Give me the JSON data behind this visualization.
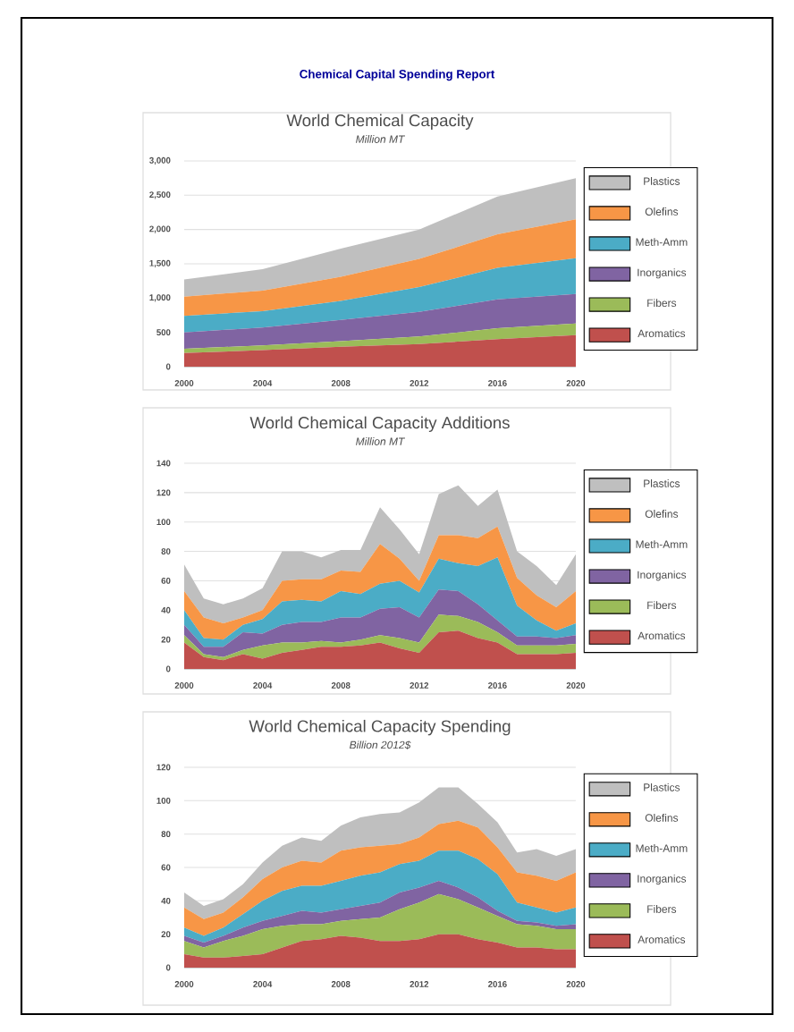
{
  "chart_data": [
    {
      "type": "area",
      "stacked": true,
      "title": "World Chemical Capacity",
      "subtitle": "Million MT",
      "annotations": [
        "Chemical Capital Spending Report"
      ],
      "x": [
        2000,
        2004,
        2008,
        2012,
        2016,
        2020
      ],
      "xlim": [
        2000,
        2020
      ],
      "xticks": [
        2000,
        2004,
        2008,
        2012,
        2016,
        2020
      ],
      "ylim": [
        0,
        3000
      ],
      "yticks": [
        0,
        500,
        {
          "value": 1000,
          "label": "1,000"
        },
        {
          "value": 1500,
          "label": "1,500"
        },
        {
          "value": 2000,
          "label": "2,000"
        },
        {
          "value": 2500,
          "label": "2,500"
        },
        {
          "value": 3000,
          "label": "3,000"
        }
      ],
      "grid": "y",
      "legend": "right",
      "series": [
        {
          "name": "Aromatics",
          "color": "#c0504d",
          "values": [
            200,
            240,
            290,
            330,
            400,
            460
          ]
        },
        {
          "name": "Fibers",
          "color": "#9bbb59",
          "values": [
            60,
            70,
            80,
            110,
            160,
            170
          ]
        },
        {
          "name": "Inorganics",
          "color": "#8064a2",
          "values": [
            240,
            260,
            310,
            360,
            420,
            430
          ]
        },
        {
          "name": "Meth-Amm",
          "color": "#4bacc6",
          "values": [
            240,
            240,
            280,
            360,
            460,
            520
          ]
        },
        {
          "name": "Olefins",
          "color": "#f79646",
          "values": [
            280,
            300,
            350,
            410,
            490,
            570
          ]
        },
        {
          "name": "Plastics",
          "color": "#bfbfbf",
          "values": [
            250,
            310,
            410,
            430,
            550,
            600
          ]
        }
      ]
    },
    {
      "type": "area",
      "stacked": true,
      "title": "World Chemical Capacity Additions",
      "subtitle": "Million MT",
      "x": [
        2000,
        2001,
        2002,
        2003,
        2004,
        2005,
        2006,
        2007,
        2008,
        2009,
        2010,
        2011,
        2012,
        2013,
        2014,
        2015,
        2016,
        2017,
        2018,
        2019,
        2020
      ],
      "xlim": [
        2000,
        2020
      ],
      "xticks": [
        2000,
        2004,
        2008,
        2012,
        2016,
        2020
      ],
      "ylim": [
        0,
        140
      ],
      "yticks": [
        0,
        20,
        40,
        60,
        80,
        100,
        120,
        140
      ],
      "grid": "y",
      "legend": "right",
      "series": [
        {
          "name": "Aromatics",
          "color": "#c0504d",
          "values": [
            18,
            8,
            6,
            10,
            7,
            11,
            13,
            15,
            15,
            16,
            18,
            14,
            11,
            25,
            26,
            21,
            18,
            10,
            10,
            10,
            11
          ]
        },
        {
          "name": "Fibers",
          "color": "#9bbb59",
          "values": [
            5,
            2,
            2,
            3,
            9,
            7,
            5,
            4,
            3,
            4,
            5,
            7,
            7,
            12,
            10,
            11,
            7,
            6,
            6,
            6,
            6
          ]
        },
        {
          "name": "Inorganics",
          "color": "#8064a2",
          "values": [
            7,
            5,
            7,
            12,
            8,
            12,
            14,
            13,
            17,
            15,
            18,
            21,
            17,
            17,
            17,
            12,
            8,
            6,
            6,
            5,
            6
          ]
        },
        {
          "name": "Meth-Amm",
          "color": "#4bacc6",
          "values": [
            10,
            6,
            5,
            5,
            10,
            16,
            15,
            14,
            18,
            16,
            17,
            18,
            17,
            21,
            19,
            26,
            43,
            21,
            11,
            5,
            8
          ]
        },
        {
          "name": "Olefins",
          "color": "#f79646",
          "values": [
            13,
            14,
            11,
            5,
            6,
            14,
            14,
            15,
            14,
            15,
            27,
            15,
            8,
            16,
            19,
            19,
            21,
            19,
            17,
            16,
            22
          ]
        },
        {
          "name": "Plastics",
          "color": "#bfbfbf",
          "values": [
            18,
            13,
            13,
            13,
            15,
            20,
            19,
            15,
            14,
            15,
            25,
            20,
            18,
            28,
            34,
            22,
            25,
            18,
            20,
            15,
            25
          ]
        }
      ]
    },
    {
      "type": "area",
      "stacked": true,
      "title": "World Chemical Capacity Spending",
      "subtitle": "Billion 2012$",
      "x": [
        2000,
        2001,
        2002,
        2003,
        2004,
        2005,
        2006,
        2007,
        2008,
        2009,
        2010,
        2011,
        2012,
        2013,
        2014,
        2015,
        2016,
        2017,
        2018,
        2019,
        2020
      ],
      "xlim": [
        2000,
        2020
      ],
      "xticks": [
        2000,
        2004,
        2008,
        2012,
        2016,
        2020
      ],
      "ylim": [
        0,
        120
      ],
      "yticks": [
        0,
        20,
        40,
        60,
        80,
        100,
        120
      ],
      "grid": "y",
      "legend": "right",
      "series": [
        {
          "name": "Aromatics",
          "color": "#c0504d",
          "values": [
            8,
            6,
            6,
            7,
            8,
            12,
            16,
            17,
            19,
            18,
            16,
            16,
            17,
            20,
            20,
            17,
            15,
            12,
            12,
            11,
            11
          ]
        },
        {
          "name": "Fibers",
          "color": "#9bbb59",
          "values": [
            8,
            6,
            10,
            12,
            15,
            13,
            10,
            9,
            9,
            11,
            14,
            19,
            22,
            24,
            21,
            19,
            16,
            14,
            13,
            12,
            12
          ]
        },
        {
          "name": "Inorganics",
          "color": "#8064a2",
          "values": [
            3,
            3,
            3,
            5,
            5,
            6,
            8,
            7,
            7,
            8,
            9,
            10,
            9,
            8,
            7,
            6,
            3,
            2,
            2,
            2,
            3
          ]
        },
        {
          "name": "Meth-Amm",
          "color": "#4bacc6",
          "values": [
            5,
            4,
            5,
            8,
            12,
            15,
            15,
            16,
            17,
            18,
            18,
            17,
            16,
            18,
            22,
            23,
            22,
            11,
            9,
            8,
            10
          ]
        },
        {
          "name": "Olefins",
          "color": "#f79646",
          "values": [
            12,
            10,
            9,
            10,
            13,
            14,
            15,
            14,
            18,
            17,
            16,
            12,
            14,
            16,
            18,
            19,
            16,
            18,
            19,
            19,
            21
          ]
        },
        {
          "name": "Plastics",
          "color": "#bfbfbf",
          "values": [
            9,
            8,
            8,
            8,
            10,
            13,
            14,
            13,
            15,
            18,
            19,
            19,
            21,
            22,
            20,
            14,
            15,
            12,
            16,
            15,
            14
          ]
        }
      ]
    }
  ]
}
